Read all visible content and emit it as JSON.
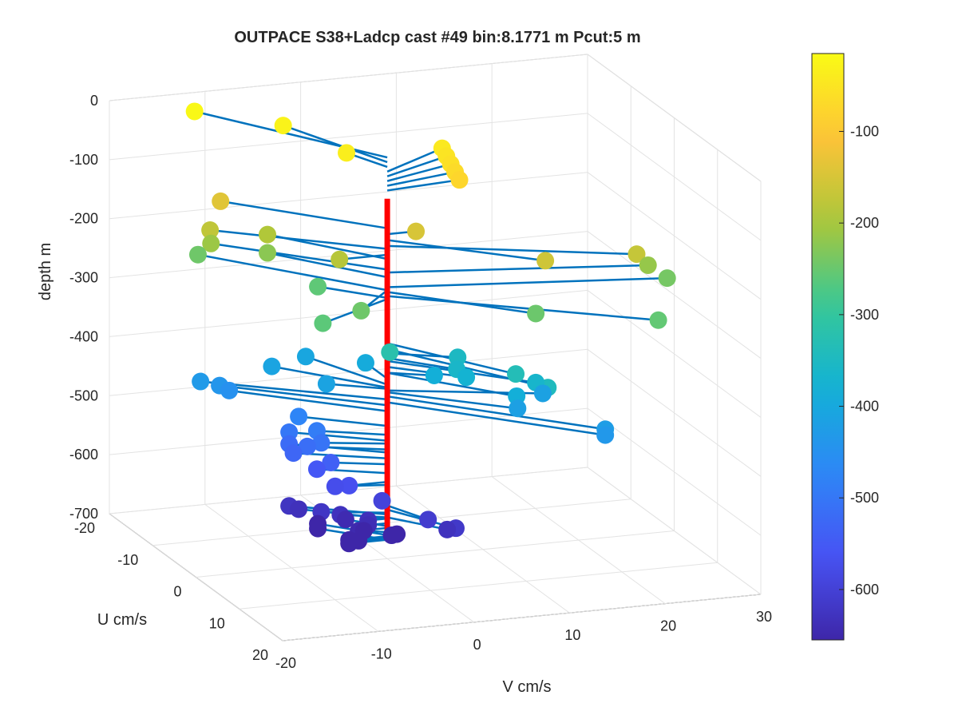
{
  "chart_data": {
    "type": "scatter",
    "title": "OUTPACE S38+Ladcp cast #49 bin:8.1771 m  Pcut:5 m",
    "xlabel": "U cm/s",
    "ylabel": "V cm/s",
    "zlabel": "depth m",
    "xlim": [
      -20,
      20
    ],
    "ylim": [
      -20,
      30
    ],
    "zlim": [
      -700,
      0
    ],
    "x_ticks": [
      "-20",
      "-10",
      "0",
      "10",
      "20"
    ],
    "y_ticks": [
      "-20",
      "-10",
      "0",
      "10",
      "20",
      "30"
    ],
    "z_ticks": [
      "0",
      "-100",
      "-200",
      "-300",
      "-400",
      "-500",
      "-600",
      "-700"
    ],
    "grid": true,
    "colormap": "parula",
    "colorbar": {
      "range": [
        -655,
        -15
      ],
      "ticks": [
        "-100",
        "-200",
        "-300",
        "-400",
        "-500",
        "-600"
      ],
      "tick_values": [
        -100,
        -200,
        -300,
        -400,
        -500,
        -600
      ]
    },
    "colors": {
      "stick": "#0072BD",
      "axis_line": "#FF0000"
    },
    "series": [
      {
        "points": [
          {
            "u": -18,
            "v": -12,
            "depth": -20
          },
          {
            "u": -13,
            "v": -5,
            "depth": -28
          },
          {
            "u": -5,
            "v": -2,
            "depth": -36
          },
          {
            "u": -5,
            "v": 8,
            "depth": -44
          },
          {
            "u": -4,
            "v": 8,
            "depth": -52
          },
          {
            "u": -3,
            "v": 8,
            "depth": -60
          },
          {
            "u": -2,
            "v": 8,
            "depth": -68
          },
          {
            "u": -1,
            "v": 8,
            "depth": -76
          },
          {
            "u": -12,
            "v": -12,
            "depth": -140
          },
          {
            "u": 0,
            "v": 3,
            "depth": -150
          },
          {
            "u": 10,
            "v": 12,
            "depth": -160
          },
          {
            "u": 9,
            "v": 22,
            "depth": -170
          },
          {
            "u": -10,
            "v": -14,
            "depth": -175
          },
          {
            "u": 0,
            "v": -5,
            "depth": -185
          },
          {
            "u": -10,
            "v": -8,
            "depth": -192
          },
          {
            "u": 5,
            "v": 25,
            "depth": -215
          },
          {
            "u": -12,
            "v": -13,
            "depth": -210
          },
          {
            "u": -10,
            "v": -8,
            "depth": -223
          },
          {
            "u": 5,
            "v": 27,
            "depth": -240
          },
          {
            "u": 14,
            "v": 22,
            "depth": -255
          },
          {
            "u": 10,
            "v": 11,
            "depth": -248
          },
          {
            "u": 5,
            "v": -5,
            "depth": -245
          },
          {
            "u": -15,
            "v": -13,
            "depth": -245
          },
          {
            "u": 5,
            "v": -9,
            "depth": -260
          },
          {
            "u": -5,
            "v": -5,
            "depth": -258
          },
          {
            "u": 5,
            "v": -2,
            "depth": -320
          },
          {
            "u": 12,
            "v": 8,
            "depth": -335
          },
          {
            "u": 15,
            "v": 10,
            "depth": -345
          },
          {
            "u": 3,
            "v": 6,
            "depth": -352
          },
          {
            "u": 5,
            "v": 5,
            "depth": -360
          },
          {
            "u": 10,
            "v": 11,
            "depth": -365
          },
          {
            "u": 5,
            "v": 6,
            "depth": -375
          },
          {
            "u": 2,
            "v": 4,
            "depth": -385
          },
          {
            "u": 10,
            "v": 9,
            "depth": -385
          },
          {
            "u": -5,
            "v": 0,
            "depth": -395
          },
          {
            "u": -10,
            "v": -4,
            "depth": -405
          },
          {
            "u": -9,
            "v": -8,
            "depth": -410
          },
          {
            "u": -3,
            "v": -5,
            "depth": -412
          },
          {
            "u": 5,
            "v": 14,
            "depth": -415
          },
          {
            "u": 8,
            "v": 10,
            "depth": -418
          },
          {
            "u": 15,
            "v": 16,
            "depth": -425
          },
          {
            "u": 15,
            "v": 16,
            "depth": -435
          },
          {
            "u": -10,
            "v": -15,
            "depth": -430
          },
          {
            "u": -10,
            "v": -13,
            "depth": -440
          },
          {
            "u": -10,
            "v": -12,
            "depth": -450
          },
          {
            "u": -5,
            "v": -7,
            "depth": -475
          },
          {
            "u": -3,
            "v": -6,
            "depth": -490
          },
          {
            "u": -5,
            "v": -8,
            "depth": -500
          },
          {
            "u": -2,
            "v": -6,
            "depth": -505
          },
          {
            "u": -3,
            "v": -7,
            "depth": -515
          },
          {
            "u": -5,
            "v": -8,
            "depth": -520
          },
          {
            "u": -4,
            "v": -8,
            "depth": -530
          },
          {
            "u": -2,
            "v": -5,
            "depth": -540
          },
          {
            "u": -3,
            "v": -6,
            "depth": -555
          },
          {
            "u": 0,
            "v": -4,
            "depth": -570
          },
          {
            "u": -1,
            "v": -5,
            "depth": -575
          },
          {
            "u": 1,
            "v": -1,
            "depth": -595
          },
          {
            "u": 5,
            "v": 2,
            "depth": -610
          },
          {
            "u": 7,
            "v": 4,
            "depth": -617
          },
          {
            "u": 5,
            "v": 4,
            "depth": -630
          },
          {
            "u": -5,
            "v": -8,
            "depth": -625
          },
          {
            "u": -2,
            "v": -6,
            "depth": -622
          },
          {
            "u": -5,
            "v": -7,
            "depth": -632
          },
          {
            "u": -2,
            "v": -4,
            "depth": -630
          },
          {
            "u": 0,
            "v": -2,
            "depth": -632
          },
          {
            "u": 0,
            "v": -2,
            "depth": -640
          },
          {
            "u": -3,
            "v": -3,
            "depth": -645
          },
          {
            "u": 0,
            "v": -3,
            "depth": -648
          },
          {
            "u": -1,
            "v": -2,
            "depth": -655
          },
          {
            "u": 1,
            "v": 0,
            "depth": -655
          },
          {
            "u": 0,
            "v": 1,
            "depth": -660
          },
          {
            "u": 0,
            "v": -4,
            "depth": -662
          },
          {
            "u": 0,
            "v": -3,
            "depth": -665
          },
          {
            "u": -5,
            "v": -5,
            "depth": -660
          },
          {
            "u": -5,
            "v": -5,
            "depth": -668
          },
          {
            "u": 0,
            "v": -4,
            "depth": -668
          }
        ]
      }
    ]
  }
}
